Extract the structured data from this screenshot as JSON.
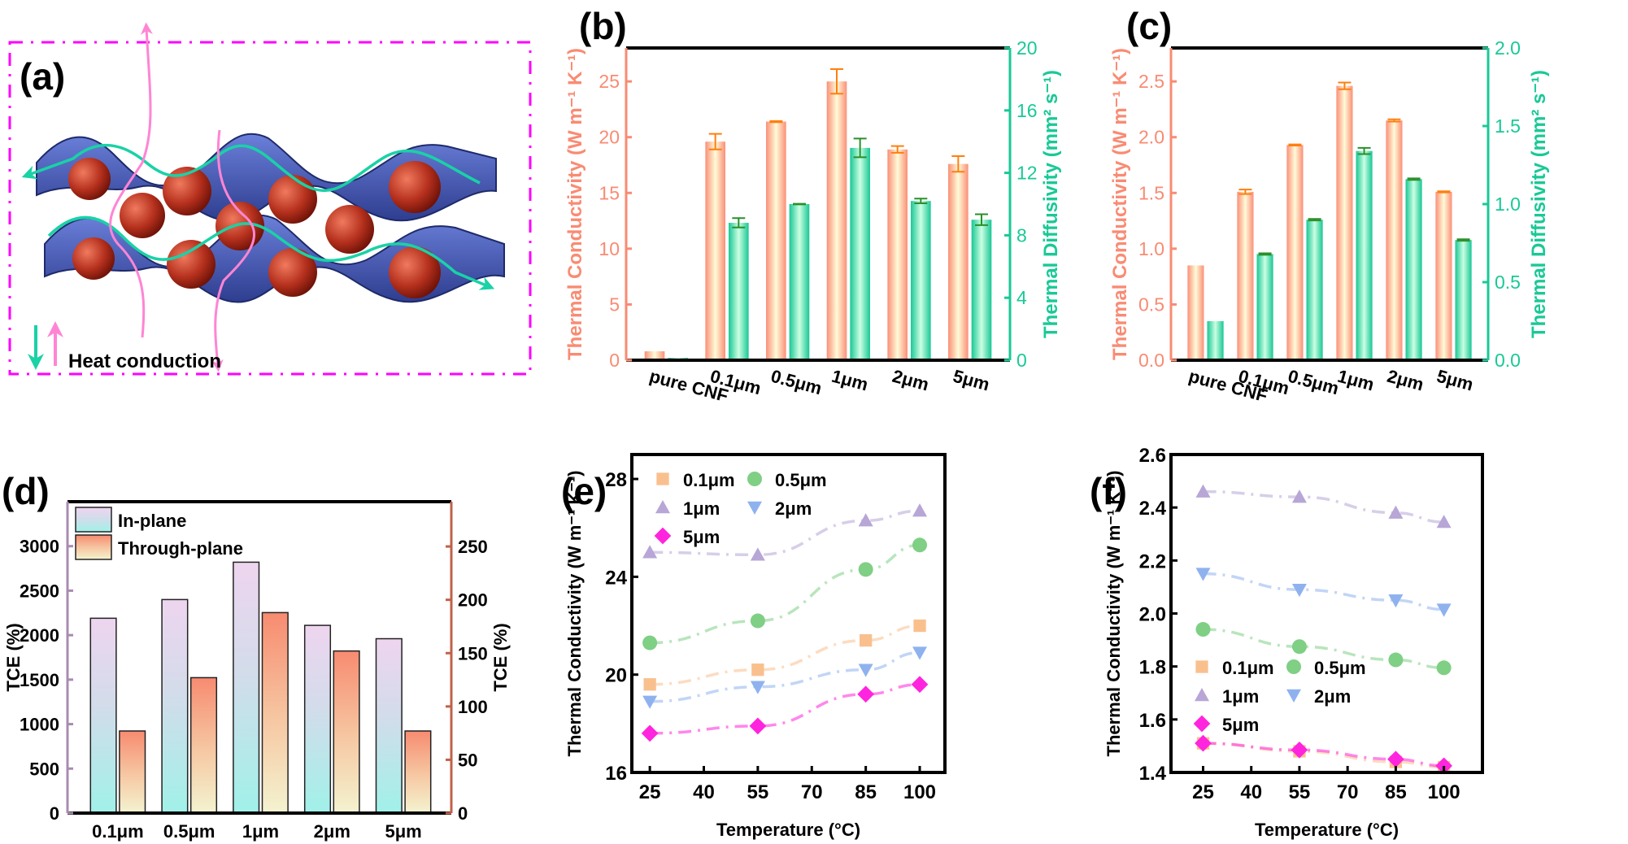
{
  "panel_a": {
    "label": "(a)",
    "legend_text": "Heat conduction",
    "frame_color": "#ff00ff",
    "sheet_color": "#4a5fc0",
    "particle_color": "#b0301e",
    "in_plane_arrow_color": "#19d2a6",
    "through_plane_arrow_color": "#ff85d4"
  },
  "chart_data": [
    {
      "id": "b",
      "panel_label": "(b)",
      "type": "bar",
      "categories": [
        "pure CNF",
        "0.1μm",
        "0.5μm",
        "1μm",
        "2μm",
        "5μm"
      ],
      "series": [
        {
          "name": "Thermal Conductivity",
          "axis": "left",
          "color": "#f98b73",
          "values": [
            0.8,
            19.6,
            21.4,
            25.0,
            18.9,
            17.6
          ],
          "errors": [
            0,
            0.7,
            0.05,
            1.1,
            0.3,
            0.7
          ]
        },
        {
          "name": "Thermal Diffusivity",
          "axis": "right",
          "color": "#19c996",
          "values": [
            0.15,
            8.8,
            10.0,
            13.6,
            10.2,
            9.0
          ],
          "errors": [
            0,
            0.3,
            0.02,
            0.6,
            0.15,
            0.35
          ]
        }
      ],
      "ylabel_left": "Thermal Conductivity (W m⁻¹ K⁻¹)",
      "ylabel_right": "Thermal Diffusivity (mm² s⁻¹)",
      "ylim_left": [
        0,
        28
      ],
      "ylim_right": [
        0,
        20
      ],
      "yticks_left": [
        0,
        5,
        10,
        15,
        20,
        25
      ],
      "yticks_right": [
        0,
        4,
        8,
        12,
        16,
        20
      ],
      "ytick_labels_left": [
        "0",
        "5",
        "10",
        "15",
        "20",
        "25"
      ],
      "ytick_labels_right": [
        "0",
        "4",
        "8",
        "12",
        "16",
        "20"
      ],
      "xlabel": ""
    },
    {
      "id": "c",
      "panel_label": "(c)",
      "type": "bar",
      "categories": [
        "pure CNF",
        "0.1μm",
        "0.5μm",
        "1μm",
        "2μm",
        "5μm"
      ],
      "series": [
        {
          "name": "Thermal Conductivity",
          "axis": "left",
          "color": "#f98b73",
          "values": [
            0.85,
            1.51,
            1.93,
            2.46,
            2.15,
            1.51
          ],
          "errors": [
            0,
            0.02,
            0.005,
            0.03,
            0.01,
            0.005
          ]
        },
        {
          "name": "Thermal Diffusivity",
          "axis": "right",
          "color": "#19c996",
          "values": [
            0.25,
            0.68,
            0.9,
            1.34,
            1.16,
            0.77
          ],
          "errors": [
            0,
            0.005,
            0.005,
            0.02,
            0.005,
            0.005
          ]
        }
      ],
      "ylabel_left": "Thermal Conductivity (W m⁻¹ K⁻¹)",
      "ylabel_right": "Thermal Diffusivity (mm² s⁻¹)",
      "ylim_left": [
        0,
        2.8
      ],
      "ylim_right": [
        0,
        2.0
      ],
      "yticks_left": [
        0,
        0.5,
        1.0,
        1.5,
        2.0,
        2.5
      ],
      "yticks_right": [
        0,
        0.5,
        1.0,
        1.5,
        2.0
      ],
      "ytick_labels_left": [
        "0.0",
        "0.5",
        "1.0",
        "1.5",
        "2.0",
        "2.5"
      ],
      "ytick_labels_right": [
        "0.0",
        "0.5",
        "1.0",
        "1.5",
        "2.0"
      ],
      "xlabel": ""
    },
    {
      "id": "d",
      "panel_label": "(d)",
      "type": "bar",
      "categories": [
        "0.1μm",
        "0.5μm",
        "1μm",
        "2μm",
        "5μm"
      ],
      "series": [
        {
          "name": "In-plane",
          "axis": "left",
          "values": [
            2190,
            2400,
            2820,
            2110,
            1960
          ]
        },
        {
          "name": "Through-plane",
          "axis": "right",
          "values": [
            77,
            127,
            188,
            152,
            77
          ]
        }
      ],
      "legend": [
        "In-plane",
        "Through-plane"
      ],
      "legend_position": "top-left",
      "ylabel_left": "TCE (%)",
      "ylabel_right": "TCE (%)",
      "ylim_left": [
        0,
        3500
      ],
      "ylim_right": [
        0,
        292
      ],
      "yticks_left": [
        0,
        500,
        1000,
        1500,
        2000,
        2500,
        3000
      ],
      "yticks_right": [
        0,
        50,
        100,
        150,
        200,
        250
      ],
      "ytick_labels_left": [
        "0",
        "500",
        "1000",
        "1500",
        "2000",
        "2500",
        "3000"
      ],
      "ytick_labels_right": [
        "0",
        "50",
        "100",
        "150",
        "200",
        "250"
      ],
      "left_axis_color": "#a98bb0",
      "right_axis_color": "#c0614a",
      "xlabel": ""
    },
    {
      "id": "e",
      "panel_label": "(e)",
      "type": "scatter",
      "x": [
        25,
        55,
        85,
        100
      ],
      "series": [
        {
          "name": "0.1μm",
          "marker": "square",
          "color": "#f9c08e",
          "values": [
            19.6,
            20.2,
            21.4,
            22.0
          ]
        },
        {
          "name": "0.5μm",
          "marker": "circle",
          "color": "#7fcf85",
          "values": [
            21.3,
            22.2,
            24.3,
            25.3
          ]
        },
        {
          "name": "1μm",
          "marker": "triangle-up",
          "color": "#b7a6d6",
          "values": [
            25.0,
            24.9,
            26.3,
            26.7
          ]
        },
        {
          "name": "2μm",
          "marker": "triangle-down",
          "color": "#8fb2ef",
          "values": [
            18.9,
            19.5,
            20.2,
            20.9
          ]
        },
        {
          "name": "5μm",
          "marker": "diamond",
          "color": "#ff24dd",
          "values": [
            17.6,
            17.9,
            19.2,
            19.6
          ]
        }
      ],
      "legend_position": "top-left",
      "xlabel": "Temperature (°C)",
      "ylabel": "Thermal Conductivity (W m⁻¹ K⁻¹)",
      "xlim": [
        20,
        107
      ],
      "ylim": [
        16,
        29
      ],
      "xticks": [
        25,
        40,
        55,
        70,
        85,
        100
      ],
      "yticks": [
        16,
        20,
        24,
        28
      ],
      "xtick_labels": [
        "25",
        "40",
        "55",
        "70",
        "85",
        "100"
      ],
      "ytick_labels": [
        "16",
        "20",
        "24",
        "28"
      ]
    },
    {
      "id": "f",
      "panel_label": "(f)",
      "type": "scatter",
      "x": [
        25,
        55,
        85,
        100
      ],
      "series": [
        {
          "name": "0.1μm",
          "marker": "square",
          "color": "#f9c08e",
          "values": [
            1.51,
            1.48,
            1.44,
            1.42
          ]
        },
        {
          "name": "0.5μm",
          "marker": "circle",
          "color": "#7fcf85",
          "values": [
            1.94,
            1.875,
            1.825,
            1.795
          ]
        },
        {
          "name": "1μm",
          "marker": "triangle-up",
          "color": "#b7a6d6",
          "values": [
            2.46,
            2.44,
            2.38,
            2.345
          ]
        },
        {
          "name": "2μm",
          "marker": "triangle-down",
          "color": "#8fb2ef",
          "values": [
            2.15,
            2.09,
            2.05,
            2.015
          ]
        },
        {
          "name": "5μm",
          "marker": "diamond",
          "color": "#ff24dd",
          "values": [
            1.51,
            1.485,
            1.45,
            1.425
          ]
        }
      ],
      "legend_position": "bottom-left",
      "xlabel": "Temperature (°C)",
      "ylabel": "Thermal Conductivity (W m⁻¹ K⁻¹)",
      "xlim": [
        15,
        112
      ],
      "ylim": [
        1.4,
        2.6
      ],
      "xticks": [
        25,
        40,
        55,
        70,
        85,
        100
      ],
      "yticks": [
        1.4,
        1.6,
        1.8,
        2.0,
        2.2,
        2.4,
        2.6
      ],
      "xtick_labels": [
        "25",
        "40",
        "55",
        "70",
        "85",
        "100"
      ],
      "ytick_labels": [
        "1.4",
        "1.6",
        "1.8",
        "2.0",
        "2.2",
        "2.4",
        "2.6"
      ]
    }
  ]
}
